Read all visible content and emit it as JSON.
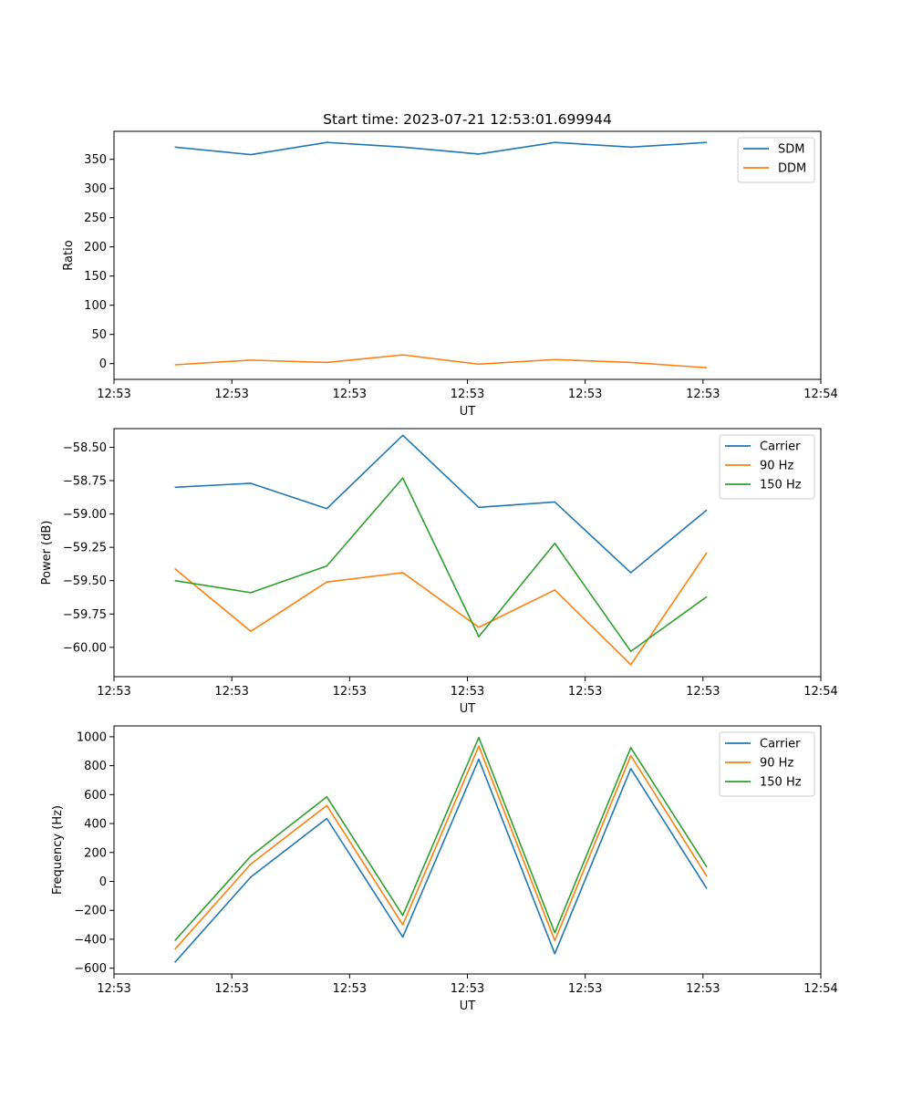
{
  "figure": {
    "title": "Start time: 2023-07-21 12:53:01.699944"
  },
  "chart_data": [
    {
      "type": "line",
      "title": "Start time: 2023-07-21 12:53:01.699944",
      "xlabel": "UT",
      "ylabel": "Ratio",
      "x": [
        1,
        2,
        3,
        4,
        5,
        6,
        7,
        8
      ],
      "xlim": [
        0.2,
        9.5
      ],
      "xticks": [
        0.2,
        1.75,
        3.3,
        4.85,
        6.4,
        7.95,
        9.5
      ],
      "xtick_labels": [
        "12:53",
        "12:53",
        "12:53",
        "12:53",
        "12:53",
        "12:53",
        "12:54"
      ],
      "ylim": [
        -27,
        398
      ],
      "yticks": [
        0,
        50,
        100,
        150,
        200,
        250,
        300,
        350
      ],
      "ytick_labels": [
        "0",
        "50",
        "100",
        "150",
        "200",
        "250",
        "300",
        "350"
      ],
      "legend_position": "top-right",
      "series": [
        {
          "name": "SDM",
          "color": "#1f77b4",
          "values": [
            371,
            358,
            379,
            371,
            359,
            379,
            371,
            379
          ]
        },
        {
          "name": "DDM",
          "color": "#ff7f0e",
          "values": [
            -2,
            6,
            2,
            15,
            -1,
            7,
            2,
            -7
          ]
        }
      ]
    },
    {
      "type": "line",
      "title": "",
      "xlabel": "UT",
      "ylabel": "Power (dB)",
      "x": [
        1,
        2,
        3,
        4,
        5,
        6,
        7,
        8
      ],
      "xlim": [
        0.2,
        9.5
      ],
      "xticks": [
        0.2,
        1.75,
        3.3,
        4.85,
        6.4,
        7.95,
        9.5
      ],
      "xtick_labels": [
        "12:53",
        "12:53",
        "12:53",
        "12:53",
        "12:53",
        "12:53",
        "12:54"
      ],
      "ylim": [
        -60.22,
        -58.36
      ],
      "yticks": [
        -60.0,
        -59.75,
        -59.5,
        -59.25,
        -59.0,
        -58.75,
        -58.5
      ],
      "ytick_labels": [
        "−60.00",
        "−59.75",
        "−59.50",
        "−59.25",
        "−59.00",
        "−58.75",
        "−58.50"
      ],
      "legend_position": "top-right",
      "series": [
        {
          "name": "Carrier",
          "color": "#1f77b4",
          "values": [
            -58.8,
            -58.77,
            -58.96,
            -58.41,
            -58.95,
            -58.91,
            -59.44,
            -58.97
          ]
        },
        {
          "name": "90 Hz",
          "color": "#ff7f0e",
          "values": [
            -59.41,
            -59.88,
            -59.51,
            -59.44,
            -59.85,
            -59.57,
            -60.13,
            -59.29
          ]
        },
        {
          "name": "150 Hz",
          "color": "#2ca02c",
          "values": [
            -59.5,
            -59.59,
            -59.39,
            -58.73,
            -59.92,
            -59.22,
            -60.03,
            -59.62
          ]
        }
      ]
    },
    {
      "type": "line",
      "title": "",
      "xlabel": "UT",
      "ylabel": "Frequency (Hz)",
      "x": [
        1,
        2,
        3,
        4,
        5,
        6,
        7,
        8
      ],
      "xlim": [
        0.2,
        9.5
      ],
      "xticks": [
        0.2,
        1.75,
        3.3,
        4.85,
        6.4,
        7.95,
        9.5
      ],
      "xtick_labels": [
        "12:53",
        "12:53",
        "12:53",
        "12:53",
        "12:53",
        "12:53",
        "12:54"
      ],
      "ylim": [
        -640,
        1075
      ],
      "yticks": [
        -600,
        -400,
        -200,
        0,
        200,
        400,
        600,
        800,
        1000
      ],
      "ytick_labels": [
        "−600",
        "−400",
        "−200",
        "0",
        "200",
        "400",
        "600",
        "800",
        "1000"
      ],
      "legend_position": "top-right",
      "series": [
        {
          "name": "Carrier",
          "color": "#1f77b4",
          "values": [
            -560,
            30,
            435,
            -385,
            845,
            -500,
            780,
            -50
          ]
        },
        {
          "name": "90 Hz",
          "color": "#ff7f0e",
          "values": [
            -470,
            120,
            525,
            -300,
            935,
            -410,
            870,
            35
          ]
        },
        {
          "name": "150 Hz",
          "color": "#2ca02c",
          "values": [
            -410,
            175,
            585,
            -235,
            995,
            -355,
            925,
            100
          ]
        }
      ]
    }
  ]
}
